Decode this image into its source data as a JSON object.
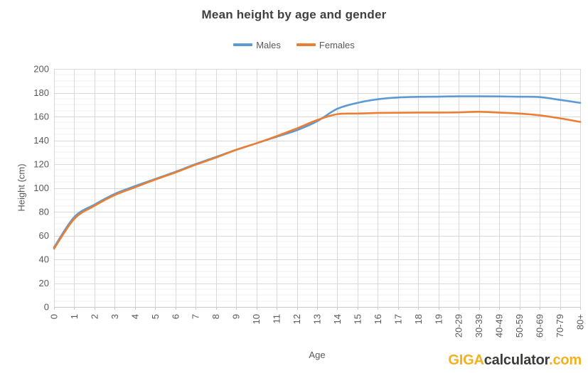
{
  "chart_data": {
    "type": "line",
    "smoothed": true,
    "title": "Mean height by age and gender",
    "xlabel": "Age",
    "ylabel": "Height (cm)",
    "ylim": [
      0,
      200
    ],
    "yticks": [
      0,
      20,
      40,
      60,
      80,
      100,
      120,
      140,
      160,
      180,
      200
    ],
    "minor_ytick_step": 5,
    "grid": true,
    "legend_position": "top",
    "categories": [
      "0",
      "1",
      "2",
      "3",
      "4",
      "5",
      "6",
      "7",
      "8",
      "9",
      "10",
      "11",
      "12",
      "13",
      "14",
      "15",
      "16",
      "17",
      "18",
      "19",
      "20-29",
      "30-39",
      "40-49",
      "50-59",
      "60-69",
      "70-79",
      "80+"
    ],
    "series": [
      {
        "name": "Males",
        "color": "#5B9BD5",
        "values": [
          50,
          75.5,
          86,
          95,
          101.5,
          107.5,
          113.5,
          120,
          126,
          132,
          137.5,
          143,
          148.5,
          156,
          166.5,
          171.5,
          174.5,
          176,
          176.5,
          176.7,
          177,
          177,
          176.9,
          176.6,
          176.3,
          174,
          171.5
        ]
      },
      {
        "name": "Females",
        "color": "#ED7D31",
        "values": [
          49,
          74,
          85,
          94,
          100.5,
          107,
          113,
          119.5,
          125.5,
          132,
          137.5,
          143.5,
          150,
          157,
          162,
          162.5,
          163,
          163.2,
          163.3,
          163.3,
          163.5,
          164,
          163.3,
          162.5,
          161,
          158.5,
          155.5
        ]
      }
    ],
    "colors": {
      "major_grid": "#D9D9D9",
      "minor_grid": "#F0F0F0",
      "axis_line": "#C8C8C8",
      "tick_label": "#595959",
      "title": "#404040"
    }
  },
  "branding": {
    "part1": "GIGA",
    "part2": "calculator",
    "part3": ".com",
    "yellow": "#F5B01F",
    "dark": "#3B3B3A"
  }
}
